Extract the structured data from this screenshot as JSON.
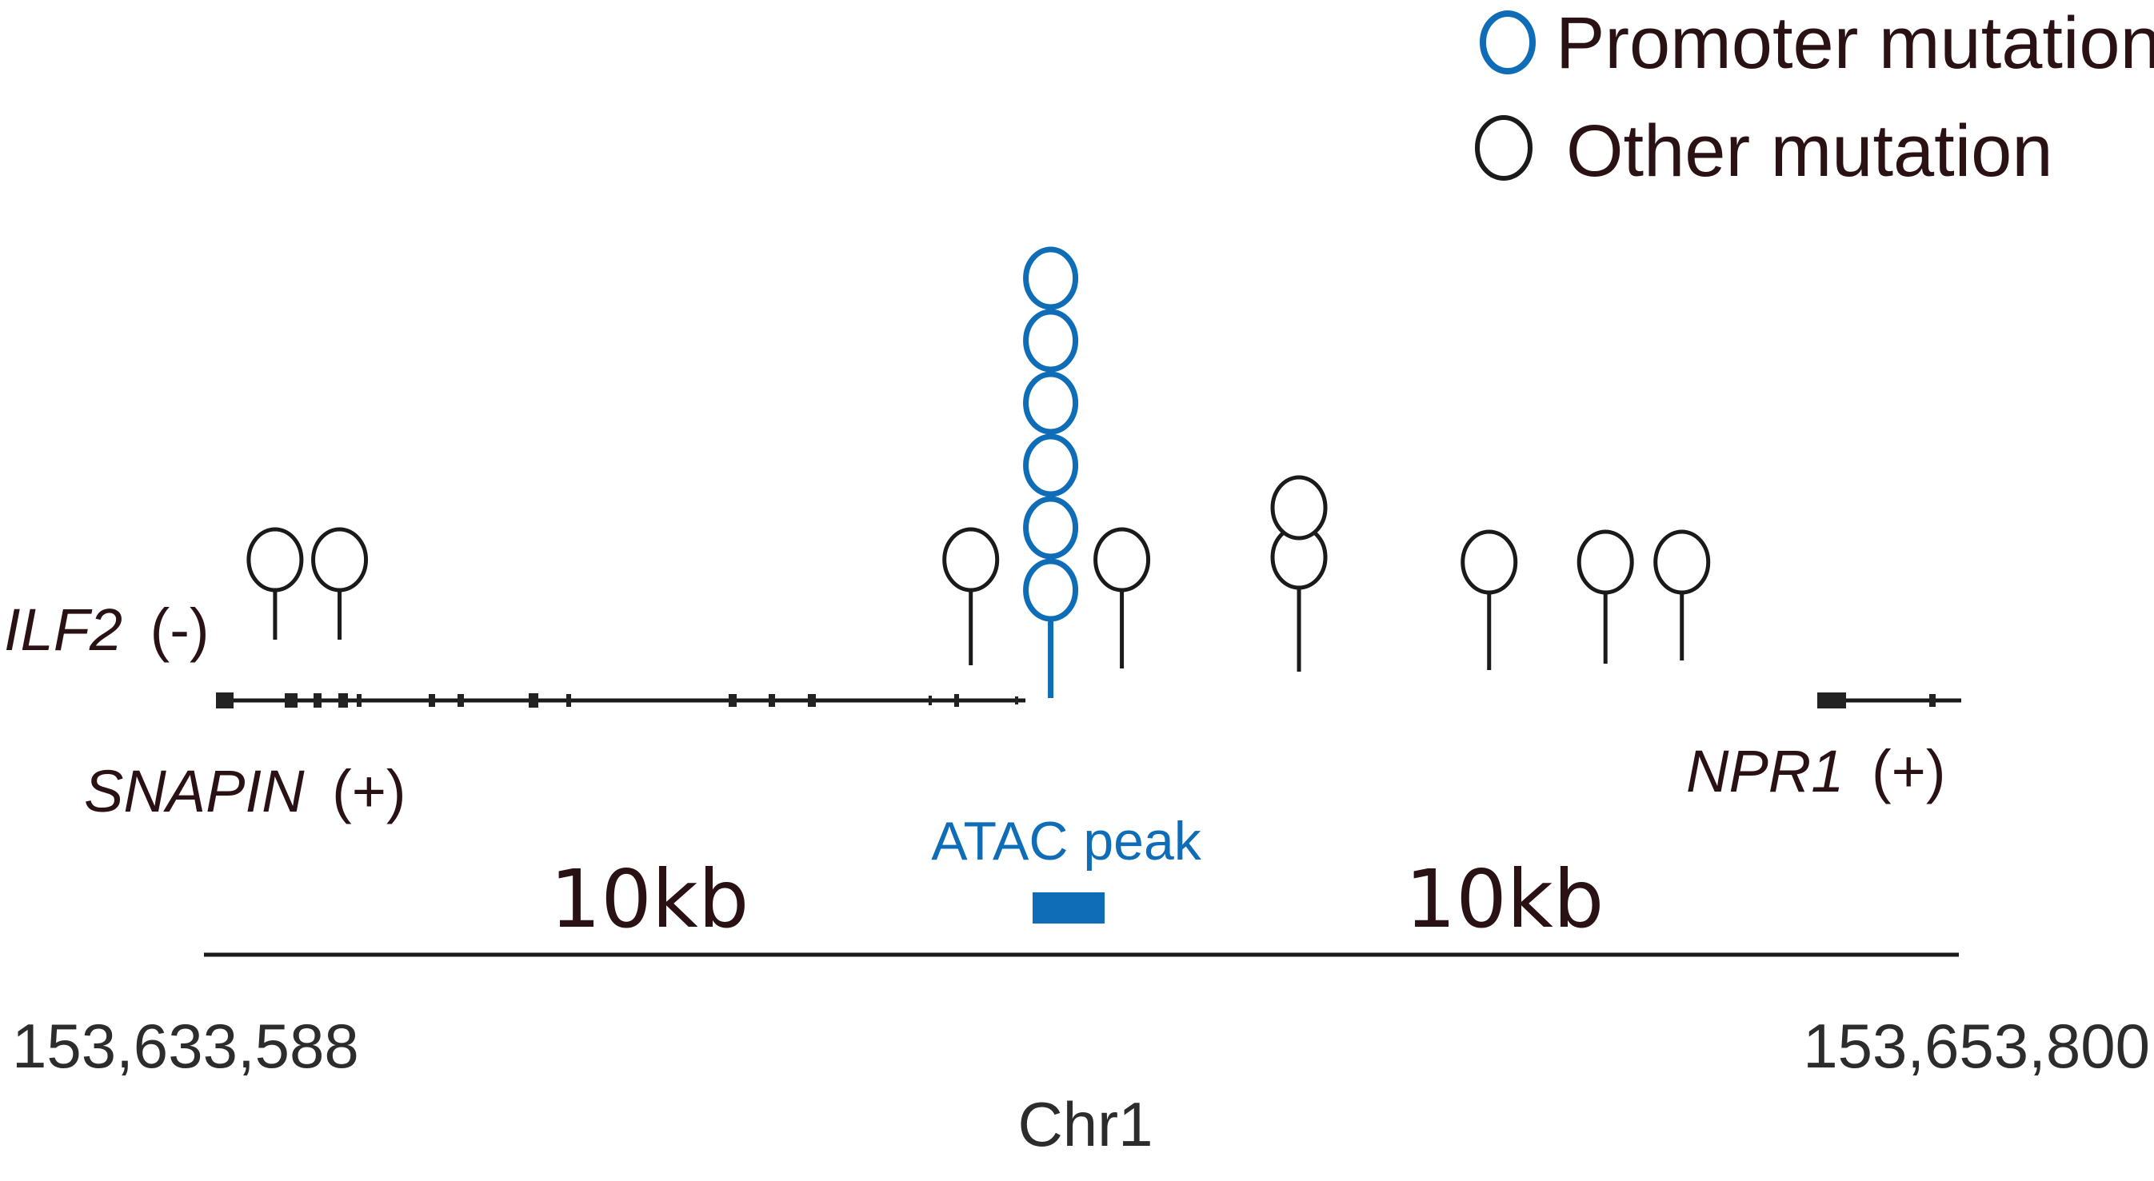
{
  "legend": {
    "promoter_label": "Promoter mutation",
    "other_label": "Other mutation",
    "promoter_color": "#0f6db8",
    "other_color": "#1a1a1a"
  },
  "genes": {
    "ilf2": {
      "name": "ILF2",
      "strand": "(-)"
    },
    "snapin": {
      "name": "SNAPIN",
      "strand": "(+)"
    },
    "npr1": {
      "name": "NPR1",
      "strand": "(+)"
    }
  },
  "atac_label": "ATAC peak",
  "scale": {
    "left_label": "10kb",
    "right_label": "10kb"
  },
  "axis": {
    "chromosome": "Chr1",
    "start_label": "153,633,588",
    "end_label": "153,653,800",
    "start": 153633588,
    "end": 153653800
  },
  "mutations": [
    {
      "type": "other",
      "position": 153634407,
      "count": 1
    },
    {
      "type": "other",
      "position": 153635150,
      "count": 1
    },
    {
      "type": "other",
      "position": 153642420,
      "count": 1
    },
    {
      "type": "promoter",
      "position": 153643340,
      "count": 6
    },
    {
      "type": "other",
      "position": 153644160,
      "count": 1
    },
    {
      "type": "other",
      "position": 153646200,
      "count": 2
    },
    {
      "type": "other",
      "position": 153648390,
      "count": 1
    },
    {
      "type": "other",
      "position": 153649730,
      "count": 1
    },
    {
      "type": "other",
      "position": 153650610,
      "count": 1
    }
  ]
}
